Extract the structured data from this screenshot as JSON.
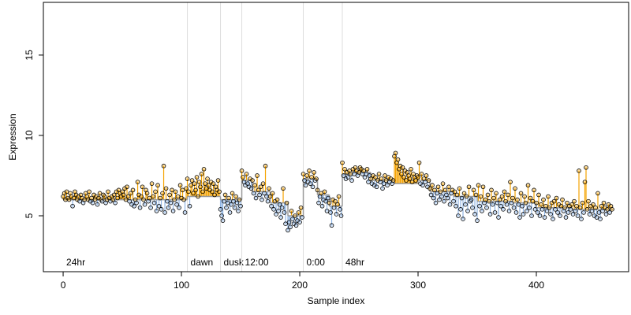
{
  "chart_data": {
    "type": "scatter",
    "x_label": "Sample index",
    "y_label": "Expression",
    "xlim": [
      -16.7,
      478
    ],
    "ylim": [
      1.52,
      18.28
    ],
    "xticks": [
      0,
      100,
      200,
      300,
      400
    ],
    "yticks": [
      5,
      10,
      15
    ],
    "above_color": "#f5a300",
    "below_color": "#8fb4e3",
    "fit_color": "#9a9a9a",
    "vline_color": "#dddddd",
    "annotation_color": "#a8a8a8",
    "annotations": [
      {
        "x": 0,
        "label": "24hr",
        "vline": false
      },
      {
        "x": 105,
        "label": "dawn",
        "vline": true
      },
      {
        "x": 133,
        "label": "dusk",
        "vline": true
      },
      {
        "x": 151,
        "label": "12:00",
        "vline": true
      },
      {
        "x": 203,
        "label": "0:00",
        "vline": true
      },
      {
        "x": 236,
        "label": "48hr",
        "vline": true
      }
    ],
    "fit": [
      {
        "x0": 0,
        "x1": 105,
        "y": 6.0
      },
      {
        "x0": 105,
        "x1": 133,
        "y": 6.2
      },
      {
        "x0": 133,
        "x1": 151,
        "y": 6.0
      },
      {
        "x0": 151,
        "x1": 160,
        "y": 7.2
      },
      {
        "x0": 160,
        "x1": 175,
        "y": 6.5
      },
      {
        "x0": 175,
        "x1": 190,
        "y": 5.8
      },
      {
        "x0": 190,
        "x1": 203,
        "y": 5.0
      },
      {
        "x0": 203,
        "x1": 215,
        "y": 7.3
      },
      {
        "x0": 215,
        "x1": 225,
        "y": 6.3
      },
      {
        "x0": 225,
        "x1": 236,
        "y": 5.6
      },
      {
        "x0": 236,
        "x1": 245,
        "y": 7.6
      },
      {
        "x0": 245,
        "x1": 260,
        "y": 7.7
      },
      {
        "x0": 260,
        "x1": 280,
        "y": 7.2
      },
      {
        "x0": 280,
        "x1": 300,
        "y": 7.0
      },
      {
        "x0": 300,
        "x1": 310,
        "y": 7.2
      },
      {
        "x0": 310,
        "x1": 330,
        "y": 6.5
      },
      {
        "x0": 330,
        "x1": 350,
        "y": 6.2
      },
      {
        "x0": 350,
        "x1": 380,
        "y": 5.9
      },
      {
        "x0": 380,
        "x1": 400,
        "y": 5.8
      },
      {
        "x0": 400,
        "x1": 430,
        "y": 5.5
      },
      {
        "x0": 430,
        "x1": 465,
        "y": 5.4
      }
    ],
    "series": [
      {
        "values": [
          6.2,
          6.4,
          6.0,
          6.5,
          6.1,
          6.0,
          6.4,
          6.2,
          5.6,
          6.1,
          6.5,
          6.3,
          6.0,
          6.2,
          5.9,
          6.3,
          6.1,
          5.8,
          6.0,
          6.4,
          6.2,
          6.0,
          6.5,
          5.9,
          6.1,
          5.8,
          6.3,
          6.0,
          6.2,
          5.7,
          6.1,
          6.4,
          6.0,
          5.9,
          6.3,
          6.2,
          5.8,
          6.0,
          6.5,
          6.1,
          5.9,
          6.2,
          6.0,
          6.3,
          5.8,
          6.5,
          6.1,
          6.6,
          6.4,
          6.2,
          6.5,
          6.3,
          6.7,
          6.0,
          6.8,
          6.2,
          5.9,
          6.4,
          5.7,
          6.6,
          5.6,
          6.0,
          5.8,
          7.1,
          6.3,
          5.5,
          6.2,
          6.8,
          6.0,
          5.7,
          6.6,
          6.4,
          5.9,
          6.1,
          5.5,
          7.0,
          6.2,
          5.8,
          6.5,
          5.3,
          6.9,
          5.6,
          6.1,
          5.4,
          6.4,
          8.1,
          5.2,
          6.7,
          5.9,
          5.5,
          6.3,
          5.8,
          6.6,
          5.3,
          6.0,
          6.5,
          5.7,
          6.2,
          5.5,
          6.9,
          6.1,
          6.6,
          6.0,
          5.2,
          6.7,
          7.3,
          6.5,
          5.6,
          6.9,
          7.2,
          6.4,
          7.0,
          6.6,
          7.4,
          6.2,
          7.1,
          6.8,
          7.6,
          6.5,
          7.9,
          7.0,
          6.7,
          7.3,
          6.9,
          6.6,
          7.1,
          6.5,
          7.0,
          6.3,
          6.8,
          6.6,
          7.2,
          6.5,
          5.4,
          5.0,
          4.7,
          5.9,
          6.3,
          5.5,
          5.8,
          6.1,
          5.2,
          5.7,
          6.4,
          5.9,
          5.5,
          6.2,
          5.8,
          5.3,
          6.0,
          5.6,
          7.8,
          7.4,
          7.1,
          6.9,
          7.6,
          7.0,
          6.8,
          7.3,
          6.7,
          7.2,
          6.4,
          6.9,
          6.1,
          7.5,
          6.6,
          6.3,
          6.8,
          6.0,
          7.0,
          6.4,
          8.1,
          6.2,
          5.9,
          6.7,
          6.2,
          5.6,
          6.4,
          5.4,
          5.9,
          5.1,
          6.0,
          5.3,
          5.7,
          4.9,
          5.5,
          6.7,
          5.2,
          4.5,
          5.8,
          4.1,
          4.6,
          4.3,
          5.3,
          4.8,
          4.5,
          5.0,
          4.4,
          4.7,
          5.2,
          4.6,
          5.5,
          4.9,
          7.6,
          7.2,
          6.9,
          7.5,
          7.1,
          7.8,
          7.0,
          7.4,
          6.8,
          7.7,
          7.2,
          7.3,
          6.6,
          5.8,
          6.2,
          6.4,
          5.6,
          6.0,
          6.5,
          5.9,
          5.3,
          6.1,
          5.8,
          5.2,
          4.4,
          6.0,
          5.5,
          5.9,
          5.1,
          5.7,
          6.2,
          5.4,
          5.0,
          8.3,
          7.5,
          7.9,
          7.3,
          7.7,
          7.4,
          7.8,
          7.6,
          7.2,
          7.9,
          7.6,
          8.0,
          7.8,
          7.5,
          7.7,
          8.0,
          7.9,
          7.6,
          7.8,
          7.4,
          7.6,
          7.9,
          7.1,
          7.5,
          7.3,
          7.0,
          7.5,
          6.9,
          7.4,
          6.8,
          7.2,
          7.6,
          7.1,
          7.3,
          6.7,
          7.0,
          7.5,
          7.2,
          6.9,
          7.4,
          7.1,
          7.3,
          7.0,
          7.2,
          8.7,
          8.9,
          8.3,
          8.5,
          7.9,
          8.1,
          7.6,
          8.0,
          7.4,
          7.8,
          7.2,
          7.7,
          7.5,
          7.3,
          7.9,
          7.1,
          7.6,
          7.4,
          7.2,
          7.5,
          7.4,
          8.3,
          7.0,
          7.6,
          6.9,
          7.3,
          7.1,
          7.5,
          6.8,
          7.2,
          6.7,
          6.3,
          6.9,
          6.1,
          6.6,
          5.8,
          6.4,
          6.8,
          6.0,
          6.5,
          6.2,
          7.0,
          5.9,
          6.6,
          6.3,
          6.1,
          6.8,
          5.7,
          6.4,
          6.6,
          5.9,
          6.5,
          5.6,
          6.3,
          5.0,
          6.7,
          5.4,
          6.1,
          4.8,
          6.4,
          5.7,
          6.2,
          5.3,
          6.8,
          5.9,
          6.0,
          5.5,
          6.6,
          5.1,
          6.3,
          4.7,
          6.9,
          5.6,
          6.2,
          5.3,
          6.8,
          5.8,
          6.0,
          5.5,
          6.3,
          5.9,
          5.1,
          6.6,
          5.7,
          6.1,
          5.2,
          6.4,
          5.8,
          4.9,
          6.0,
          5.6,
          6.2,
          5.4,
          6.5,
          5.9,
          5.7,
          6.3,
          5.3,
          7.1,
          5.8,
          6.1,
          5.5,
          6.7,
          5.2,
          6.0,
          5.7,
          4.9,
          6.4,
          5.6,
          5.1,
          6.2,
          5.8,
          5.3,
          6.9,
          5.5,
          6.1,
          5.0,
          5.9,
          6.6,
          5.4,
          5.8,
          5.2,
          6.3,
          5.0,
          5.7,
          5.4,
          6.0,
          4.9,
          5.6,
          5.3,
          6.2,
          5.5,
          5.1,
          5.8,
          4.8,
          5.9,
          5.4,
          6.1,
          5.2,
          5.7,
          5.0,
          5.6,
          6.0,
          5.3,
          5.5,
          4.9,
          5.8,
          5.2,
          5.6,
          5.4,
          5.7,
          5.1,
          5.9,
          5.3,
          5.6,
          5.0,
          7.8,
          5.5,
          4.8,
          5.8,
          5.2,
          7.1,
          8.0,
          5.4,
          5.9,
          5.1,
          5.6,
          5.3,
          5.7,
          5.0,
          5.5,
          4.9,
          6.4,
          5.2,
          4.8,
          5.6,
          5.3,
          5.8,
          5.5,
          5.1,
          5.4,
          5.7,
          5.2,
          5.6,
          5.4
        ]
      }
    ]
  }
}
